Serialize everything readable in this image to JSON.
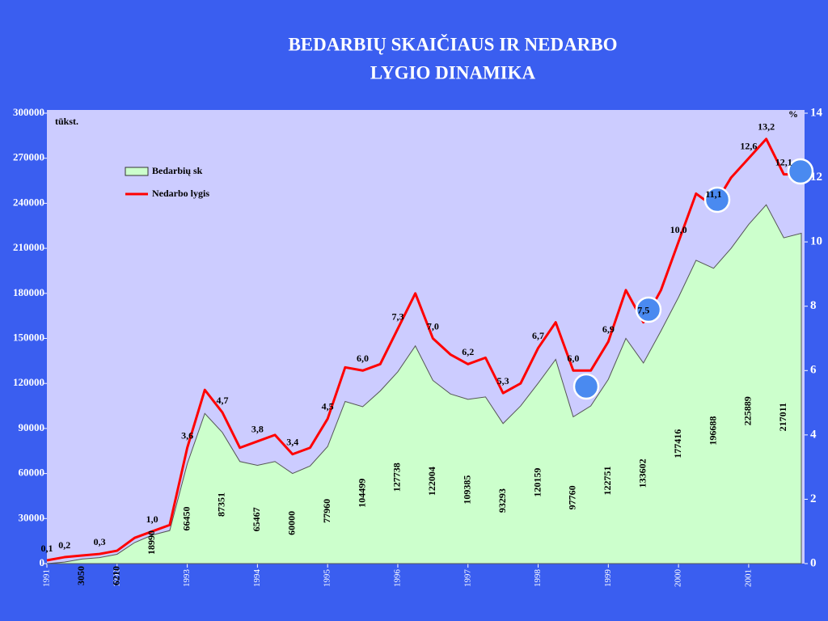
{
  "chart_data": {
    "type": "area-line",
    "title": [
      "BEDARBIŲ SKAIČIAUS IR NEDARBO",
      "LYGIO DINAMIKA"
    ],
    "y_unit": "tūkst.",
    "y2_unit": "%",
    "categories": [
      "1991",
      null,
      null,
      null,
      "1992",
      null,
      null,
      null,
      "1993",
      null,
      null,
      null,
      "1994",
      null,
      null,
      null,
      "1995",
      null,
      null,
      null,
      "1996",
      null,
      null,
      null,
      "1997",
      null,
      null,
      null,
      "1998",
      null,
      null,
      null,
      "1999",
      null,
      null,
      null,
      "2000",
      null,
      null,
      null,
      "2001",
      null,
      null,
      null
    ],
    "ylim": [
      0,
      300000
    ],
    "yticks": [
      0,
      30000,
      60000,
      90000,
      120000,
      150000,
      180000,
      210000,
      240000,
      270000,
      300000
    ],
    "y2lim": [
      0,
      14
    ],
    "y2ticks": [
      0,
      2,
      4,
      6,
      8,
      10,
      12,
      14
    ],
    "series": [
      {
        "name": "Bedarbių sk",
        "color": "#ccffcc",
        "values": [
          0,
          1000,
          3050,
          4000,
          6210,
          14000,
          18990,
          22000,
          66450,
          100000,
          87351,
          68000,
          65467,
          68000,
          60000,
          65000,
          77960,
          108000,
          104499,
          115000,
          127738,
          145000,
          122004,
          113000,
          109385,
          111000,
          93293,
          105000,
          120159,
          136000,
          97760,
          105000,
          122751,
          150000,
          133602,
          155000,
          177416,
          202000,
          196688,
          210000,
          225889,
          239000,
          217011,
          220000
        ],
        "value_labels": [
          null,
          null,
          "3050",
          null,
          "6210",
          null,
          "18990",
          null,
          "66450",
          null,
          "87351",
          null,
          "65467",
          null,
          "60000",
          null,
          "77960",
          null,
          "104499",
          null,
          "127738",
          null,
          "122004",
          null,
          "109385",
          null,
          "93293",
          null,
          "120159",
          null,
          "97760",
          null,
          "122751",
          null,
          "133602",
          null,
          "177416",
          null,
          "196688",
          null,
          "225889",
          null,
          "217011",
          null
        ]
      },
      {
        "name": "Nedarbo lygis",
        "color": "#ff0000",
        "axis": "y2",
        "values": [
          0.1,
          0.2,
          0.25,
          0.3,
          0.4,
          0.8,
          1.0,
          1.2,
          3.6,
          5.4,
          4.7,
          3.6,
          3.8,
          4.0,
          3.4,
          3.6,
          4.5,
          6.1,
          6.0,
          6.2,
          7.3,
          8.4,
          7.0,
          6.5,
          6.2,
          6.4,
          5.3,
          5.6,
          6.7,
          7.5,
          6.0,
          6.0,
          6.9,
          8.5,
          7.5,
          8.5,
          10.0,
          11.5,
          11.1,
          12.0,
          12.6,
          13.2,
          12.1,
          12.1
        ],
        "value_labels": [
          "0,1",
          "0,2",
          null,
          "0,3",
          null,
          null,
          "1,0",
          null,
          "3,6",
          null,
          "4,7",
          null,
          "3,8",
          null,
          "3,4",
          null,
          "4,5",
          null,
          "6,0",
          null,
          "7,3",
          null,
          "7,0",
          null,
          "6,2",
          null,
          "5,3",
          null,
          "6,7",
          null,
          "6,0",
          null,
          "6,9",
          null,
          "7,5",
          null,
          "10,0",
          null,
          "11,1",
          null,
          "12,6",
          "13,2",
          "12,1",
          null
        ]
      }
    ],
    "legend": "upper left"
  }
}
